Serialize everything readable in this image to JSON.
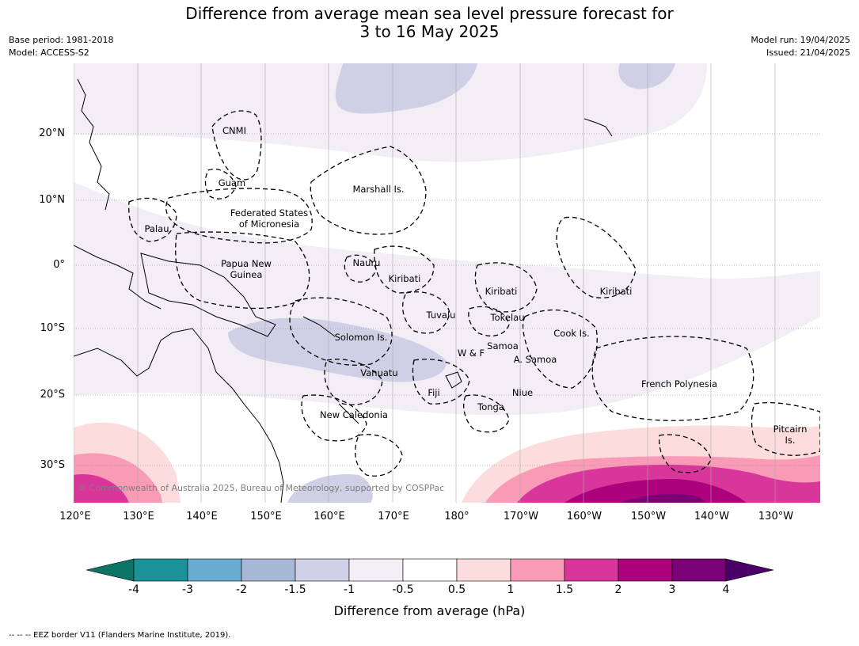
{
  "title_line1": "Difference from average mean sea level pressure forecast for",
  "title_line2": "3 to 16 May 2025",
  "meta_left": {
    "base_period": "Base period: 1981-2018",
    "model": "Model: ACCESS-S2"
  },
  "meta_right": {
    "model_run": "Model run: 19/04/2025",
    "issued": "Issued: 21/04/2025"
  },
  "lat_labels": [
    "20°N",
    "10°N",
    "0°",
    "10°S",
    "20°S",
    "30°S"
  ],
  "lon_labels": [
    "120°E",
    "130°E",
    "140°E",
    "150°E",
    "160°E",
    "170°E",
    "180°",
    "170°W",
    "160°W",
    "150°W",
    "140°W",
    "130°W"
  ],
  "regions": [
    "CNMI",
    "Guam",
    "Marshall Is.",
    "Federated States",
    "of Micronesia",
    "Palau",
    "Papua New",
    "Guinea",
    "Nauru",
    "Kiribati",
    "Kiribati",
    "Kiribati",
    "Tuvalu",
    "Tokelau",
    "Solomon Is.",
    "Cook Is.",
    "W & F",
    "Samoa",
    "A. Samoa",
    "Vanuatu",
    "Fiji",
    "Niue",
    "Tonga",
    "French Polynesia",
    "New Caledonia",
    "Pitcairn",
    "Is."
  ],
  "copyright": "© Commonwealth of Australia 2025, Bureau of Meteorology, supported by COSPPac",
  "colorbar": {
    "title": "Difference from average (hPa)",
    "ticks": [
      "-4",
      "-3",
      "-2",
      "-1.5",
      "-1",
      "-0.5",
      "0.5",
      "1",
      "1.5",
      "2",
      "3",
      "4"
    ],
    "colors": [
      "#0d7468",
      "#1b9199",
      "#6aabd2",
      "#a7b8d6",
      "#cfd0e6",
      "#f3edf6",
      "#ffffff",
      "#fddcdd",
      "#f99bb7",
      "#d8369a",
      "#ad017e",
      "#7b0177",
      "#4a0066"
    ]
  },
  "footnote": "--  --  -- EEZ border V11 (Flanders Marine Institute, 2019)."
}
